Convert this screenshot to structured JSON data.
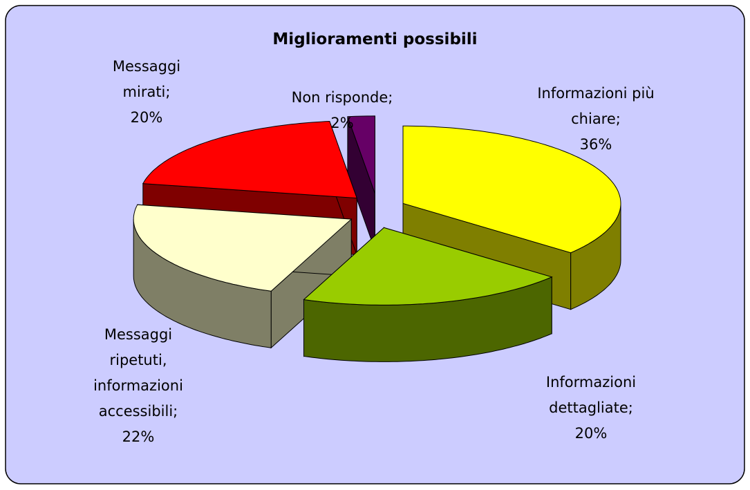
{
  "chart_data": {
    "type": "pie3d",
    "title": "Miglioramenti possibili",
    "categories": [
      "Informazioni più chiare;",
      "Informazioni dettagliate;",
      "Messaggi ripetuti, informazioni accessibili;",
      "Messaggi mirati;",
      "Non risponde;"
    ],
    "values": [
      36,
      20,
      22,
      20,
      2
    ],
    "value_labels": [
      "36%",
      "20%",
      "22%",
      "20%",
      "2%"
    ],
    "colors": [
      "#ffff00",
      "#99cc00",
      "#ffffcc",
      "#ff0000",
      "#660066"
    ],
    "exploded": true
  }
}
